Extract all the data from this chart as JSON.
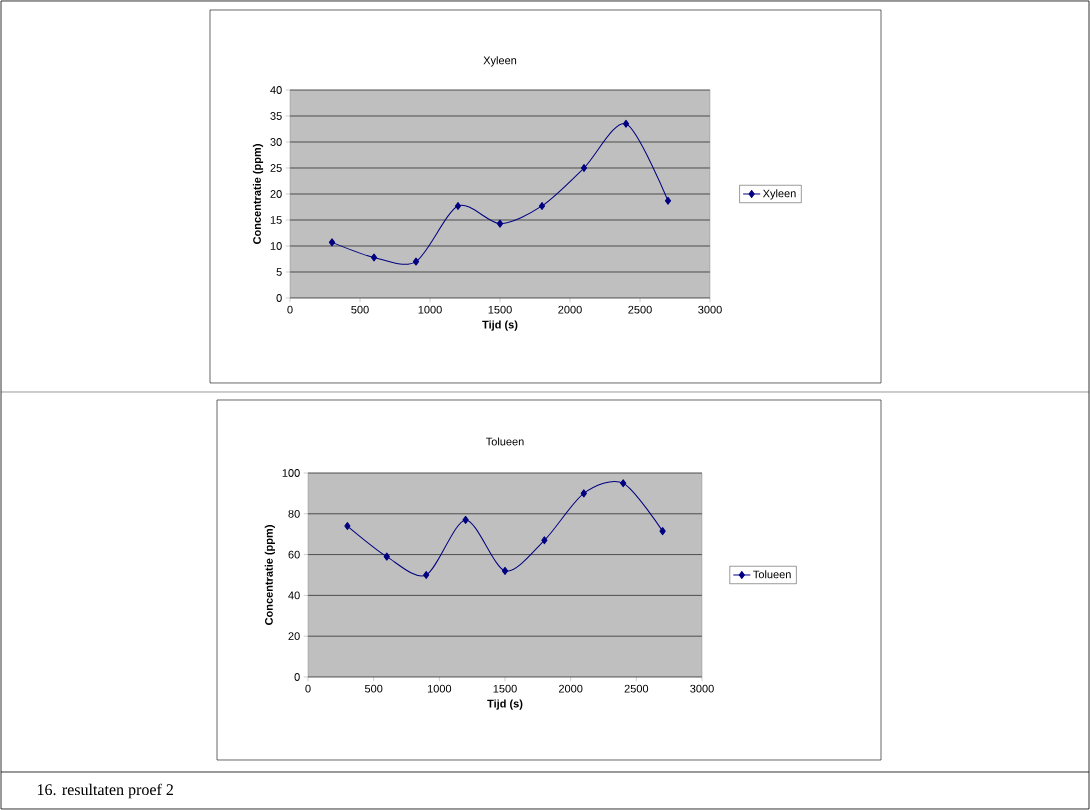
{
  "chart_data": [
    {
      "type": "line",
      "title": "Xyleen",
      "xlabel": "Tijd (s)",
      "ylabel": "Concentratie (ppm)",
      "x": [
        300,
        600,
        900,
        1200,
        1500,
        1800,
        2100,
        2400,
        2700
      ],
      "series": [
        {
          "name": "Xyleen",
          "color": "#000080",
          "values": [
            10.7,
            7.8,
            7.0,
            17.7,
            14.3,
            17.7,
            25.0,
            33.5,
            18.7
          ]
        }
      ],
      "xlim": [
        0,
        3000
      ],
      "xticks": [
        0,
        500,
        1000,
        1500,
        2000,
        2500,
        3000
      ],
      "ylim": [
        0,
        40
      ],
      "yticks": [
        0,
        5,
        10,
        15,
        20,
        25,
        30,
        35,
        40
      ],
      "grid": "y",
      "legend": "right",
      "marker": "diamond",
      "line_style": "solid"
    },
    {
      "type": "line",
      "title": "Tolueen",
      "xlabel": "Tijd (s)",
      "ylabel": "Concentratie (ppm)",
      "x": [
        300,
        600,
        900,
        1200,
        1500,
        1800,
        2100,
        2400,
        2700
      ],
      "series": [
        {
          "name": "Tolueen",
          "color": "#000080",
          "values": [
            74,
            59,
            50,
            77,
            52,
            67,
            90,
            95,
            71.5
          ]
        }
      ],
      "xlim": [
        0,
        3000
      ],
      "xticks": [
        0,
        500,
        1000,
        1500,
        2000,
        2500,
        3000
      ],
      "ylim": [
        0,
        100
      ],
      "yticks": [
        0,
        20,
        40,
        60,
        80,
        100
      ],
      "grid": "y",
      "legend": "right",
      "marker": "diamond",
      "line_style": "solid",
      "annotations": [
        "16. resultaten proef 2"
      ]
    }
  ]
}
